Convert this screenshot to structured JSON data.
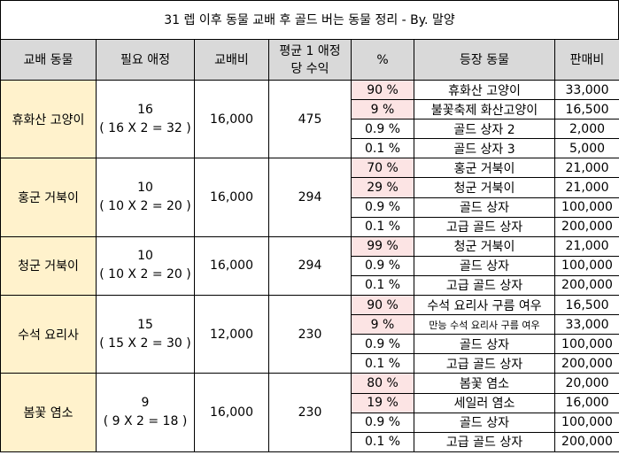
{
  "title": "31 렙 이후 동물 교배 후 골드 버는 동물 정리 - By. 말양",
  "headers": {
    "animal": "교배 동물",
    "affection": "필요 애정",
    "cost": "교배비",
    "income_line1": "평균 1 애정",
    "income_line2": "당 수익",
    "pct": "%",
    "appear": "등장 동물",
    "price": "판매비"
  },
  "groups": [
    {
      "animal": "휴화산 고양이",
      "affection": "16",
      "formula": "( 16 X 2 = 32 )",
      "cost": "16,000",
      "income": "475",
      "rows": [
        {
          "pct": "90 %",
          "item": "휴화산 고양이",
          "price": "33,000",
          "highlight": true
        },
        {
          "pct": "9 %",
          "item": "불꽃축제 화산고양이",
          "price": "16,500",
          "highlight": true
        },
        {
          "pct": "0.9 %",
          "item": "골드 상자 2",
          "price": "2,000",
          "highlight": false
        },
        {
          "pct": "0.1 %",
          "item": "골드 상자 3",
          "price": "5,000",
          "highlight": false
        }
      ]
    },
    {
      "animal": "홍군 거북이",
      "affection": "10",
      "formula": "( 10 X 2 = 20 )",
      "cost": "16,000",
      "income": "294",
      "rows": [
        {
          "pct": "70 %",
          "item": "홍군 거북이",
          "price": "21,000",
          "highlight": true
        },
        {
          "pct": "29 %",
          "item": "청군 거북이",
          "price": "21,000",
          "highlight": true
        },
        {
          "pct": "0.9 %",
          "item": "골드 상자",
          "price": "100,000",
          "highlight": false
        },
        {
          "pct": "0.1 %",
          "item": "고급 골드 상자",
          "price": "200,000",
          "highlight": false
        }
      ]
    },
    {
      "animal": "청군 거북이",
      "affection": "10",
      "formula": "( 10 X 2 = 20 )",
      "cost": "16,000",
      "income": "294",
      "rows": [
        {
          "pct": "99 %",
          "item": "청군 거북이",
          "price": "21,000",
          "highlight": true
        },
        {
          "pct": "0.9 %",
          "item": "골드 상자",
          "price": "100,000",
          "highlight": false
        },
        {
          "pct": "0.1 %",
          "item": "고급 골드 상자",
          "price": "200,000",
          "highlight": false
        }
      ]
    },
    {
      "animal": "수석 요리사",
      "affection": "15",
      "formula": "( 15 X 2 = 30 )",
      "cost": "12,000",
      "income": "230",
      "rows": [
        {
          "pct": "90 %",
          "item": "수석 요리사 구름 여우",
          "price": "16,500",
          "highlight": true
        },
        {
          "pct": "9 %",
          "item": "만능 수석 요리사 구름 여우",
          "price": "33,000",
          "highlight": true,
          "small": true
        },
        {
          "pct": "0.9 %",
          "item": "골드 상자",
          "price": "100,000",
          "highlight": false
        },
        {
          "pct": "0.1 %",
          "item": "고급 골드 상자",
          "price": "200,000",
          "highlight": false
        }
      ]
    },
    {
      "animal": "봄꽃 염소",
      "affection": "9",
      "formula": "( 9 X 2 = 18 )",
      "cost": "16,000",
      "income": "230",
      "rows": [
        {
          "pct": "80 %",
          "item": "봄꽃 염소",
          "price": "20,000",
          "highlight": true
        },
        {
          "pct": "19 %",
          "item": "세일러 염소",
          "price": "16,000",
          "highlight": true
        },
        {
          "pct": "0.9 %",
          "item": "골드 상자",
          "price": "100,000",
          "highlight": false
        },
        {
          "pct": "0.1 %",
          "item": "고급 골드 상자",
          "price": "200,000",
          "highlight": false
        }
      ]
    }
  ],
  "colors": {
    "header_bg": "#d9d9d9",
    "animal_bg": "#fff2cc",
    "pct_highlight_bg": "#fce4e4"
  }
}
